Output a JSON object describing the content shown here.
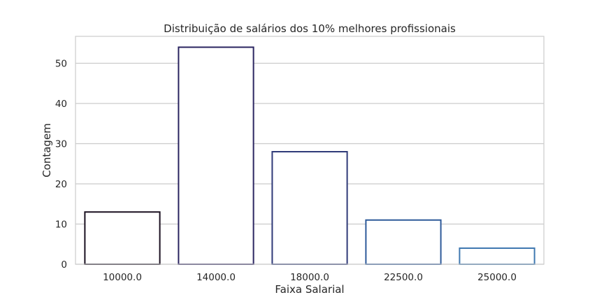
{
  "chart_data": {
    "type": "bar",
    "title": "Distribuição de salários dos 10% melhores profissionais",
    "xlabel": "Faixa Salarial",
    "ylabel": "Contagem",
    "categories": [
      "10000.0",
      "14000.0",
      "18000.0",
      "22500.0",
      "25000.0"
    ],
    "values": [
      13,
      54,
      28,
      11,
      4
    ],
    "ylim": [
      0,
      56.7
    ],
    "yticks": [
      0,
      10,
      20,
      30,
      40,
      50
    ],
    "grid": true,
    "bar_fill": "#ffffff",
    "edge_colors": [
      "#1a1020",
      "#2a2460",
      "#2f3a78",
      "#2e5a9a",
      "#3f78b0"
    ]
  }
}
